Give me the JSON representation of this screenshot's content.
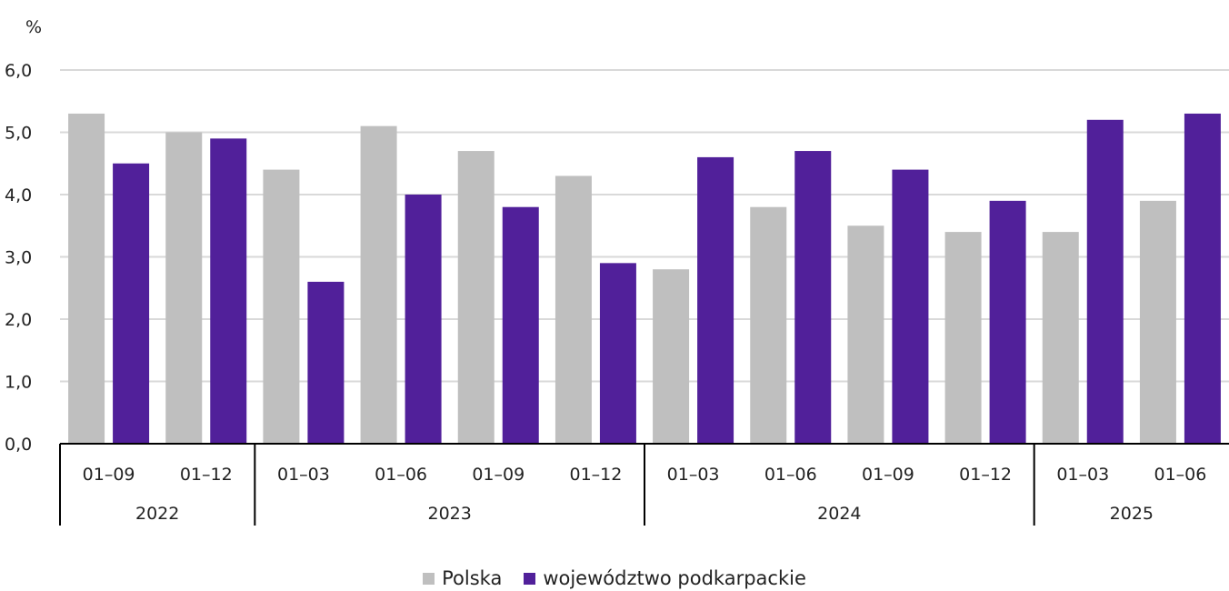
{
  "chart_data": {
    "type": "bar",
    "y_unit": "%",
    "ylim": [
      0,
      6
    ],
    "y_ticks": [
      "0,0",
      "1,0",
      "2,0",
      "3,0",
      "4,0",
      "5,0",
      "6,0"
    ],
    "categories": [
      "01–09",
      "01–12",
      "01–03",
      "01–06",
      "01–09",
      "01–12",
      "01–03",
      "01–06",
      "01–09",
      "01–12",
      "01–03",
      "01–06"
    ],
    "groups": [
      {
        "label": "2022",
        "count": 2
      },
      {
        "label": "2023",
        "count": 4
      },
      {
        "label": "2024",
        "count": 4
      },
      {
        "label": "2025",
        "count": 2
      }
    ],
    "series": [
      {
        "name": "Polska",
        "color": "#bfbfbf",
        "values": [
          5.3,
          5.0,
          4.4,
          5.1,
          4.7,
          4.3,
          2.8,
          3.8,
          3.5,
          3.4,
          3.4,
          3.9
        ]
      },
      {
        "name": "województwo podkarpackie",
        "color": "#51209a",
        "values": [
          4.5,
          4.9,
          2.6,
          4.0,
          3.8,
          2.9,
          4.6,
          4.7,
          4.4,
          3.9,
          5.2,
          5.3
        ]
      }
    ],
    "grid": true,
    "legend_position": "bottom"
  }
}
